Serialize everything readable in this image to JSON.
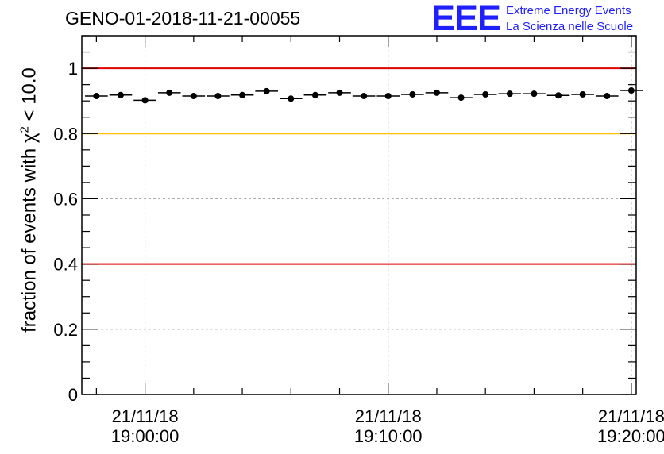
{
  "chart_data": {
    "type": "scatter",
    "title": "GENO-01-2018-11-21-00055",
    "ylabel": "fraction of events with",
    "ylabel_symbol": "χ",
    "ylabel_exponent": "2",
    "ylabel_condition": "< 10.0",
    "xlabel": "",
    "ylim": [
      0,
      1.1
    ],
    "x_range_minutes": [
      -2.6,
      20.2
    ],
    "y_ticks": [
      {
        "value": 0,
        "label": "0"
      },
      {
        "value": 0.2,
        "label": "0.2"
      },
      {
        "value": 0.4,
        "label": "0.4"
      },
      {
        "value": 0.6,
        "label": "0.6"
      },
      {
        "value": 0.8,
        "label": "0.8"
      },
      {
        "value": 1,
        "label": "1"
      }
    ],
    "x_ticks": [
      {
        "minutes": 0,
        "date": "21/11/18",
        "time": "19:00:00"
      },
      {
        "minutes": 10,
        "date": "21/11/18",
        "time": "19:10:00"
      },
      {
        "minutes": 20,
        "date": "21/11/18",
        "time": "19:20:00"
      }
    ],
    "reference_lines": [
      {
        "y": 1.0,
        "color": "#e00000"
      },
      {
        "y": 0.8,
        "color": "#ffc000"
      },
      {
        "y": 0.4,
        "color": "#e00000"
      }
    ],
    "bin_width_minutes": 1,
    "points": [
      {
        "x": -2.0,
        "y": 0.915
      },
      {
        "x": -1.0,
        "y": 0.918
      },
      {
        "x": 0.0,
        "y": 0.902
      },
      {
        "x": 1.0,
        "y": 0.925
      },
      {
        "x": 2.0,
        "y": 0.915
      },
      {
        "x": 3.0,
        "y": 0.915
      },
      {
        "x": 4.0,
        "y": 0.918
      },
      {
        "x": 5.0,
        "y": 0.93
      },
      {
        "x": 6.0,
        "y": 0.907
      },
      {
        "x": 7.0,
        "y": 0.918
      },
      {
        "x": 8.0,
        "y": 0.925
      },
      {
        "x": 9.0,
        "y": 0.915
      },
      {
        "x": 10.0,
        "y": 0.915
      },
      {
        "x": 11.0,
        "y": 0.92
      },
      {
        "x": 12.0,
        "y": 0.925
      },
      {
        "x": 13.0,
        "y": 0.91
      },
      {
        "x": 14.0,
        "y": 0.92
      },
      {
        "x": 15.0,
        "y": 0.922
      },
      {
        "x": 16.0,
        "y": 0.922
      },
      {
        "x": 17.0,
        "y": 0.917
      },
      {
        "x": 18.0,
        "y": 0.92
      },
      {
        "x": 19.0,
        "y": 0.915
      },
      {
        "x": 20.0,
        "y": 0.932
      }
    ]
  },
  "logo": {
    "mark": "EEE",
    "line1": "Extreme Energy Events",
    "line2": "La Scienza nelle Scuole"
  }
}
